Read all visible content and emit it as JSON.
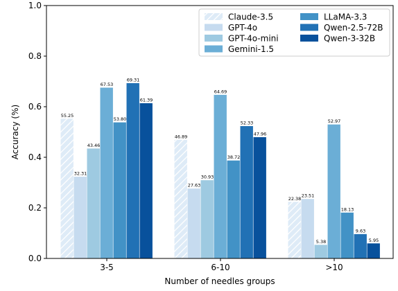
{
  "chart_data": {
    "type": "bar",
    "title": "",
    "xlabel": "Number of needles groups",
    "ylabel": "Accuracy (%)",
    "ylim": [
      0,
      1.0
    ],
    "yticks": [
      "0.0",
      "0.2",
      "0.4",
      "0.6",
      "0.8",
      "1.0"
    ],
    "categories": [
      "3-5",
      "6-10",
      ">10"
    ],
    "grid": false,
    "legend_position": "top-right",
    "series": [
      {
        "name": "Claude-3.5",
        "color": "#deebf7",
        "hatch": true,
        "values": [
          55.25,
          46.89,
          22.38
        ],
        "labels": [
          "55.25",
          "46.89",
          "22.38"
        ]
      },
      {
        "name": "GPT-4o",
        "color": "#c6dbef",
        "hatch": false,
        "values": [
          32.31,
          27.63,
          23.51
        ],
        "labels": [
          "32.31",
          "27.63",
          "23.51"
        ]
      },
      {
        "name": "GPT-4o-mini",
        "color": "#9ecae1",
        "hatch": false,
        "values": [
          43.46,
          30.93,
          5.38
        ],
        "labels": [
          "43.46",
          "30.93",
          "5.38"
        ]
      },
      {
        "name": "Gemini-1.5",
        "color": "#6baed6",
        "hatch": false,
        "values": [
          67.53,
          64.69,
          52.97
        ],
        "labels": [
          "67.53",
          "64.69",
          "52.97"
        ]
      },
      {
        "name": "LLaMA-3.3",
        "color": "#4292c6",
        "hatch": false,
        "values": [
          53.8,
          38.72,
          18.13
        ],
        "labels": [
          "53.80",
          "38.72",
          "18.13"
        ]
      },
      {
        "name": "Qwen-2.5-72B",
        "color": "#2171b5",
        "hatch": false,
        "values": [
          69.31,
          52.33,
          9.63
        ],
        "labels": [
          "69.31",
          "52.33",
          "9.63"
        ]
      },
      {
        "name": "Qwen-3-32B",
        "color": "#08519c",
        "hatch": false,
        "values": [
          61.39,
          47.96,
          5.95
        ],
        "labels": [
          "61.39",
          "47.96",
          "5.95"
        ]
      }
    ]
  }
}
